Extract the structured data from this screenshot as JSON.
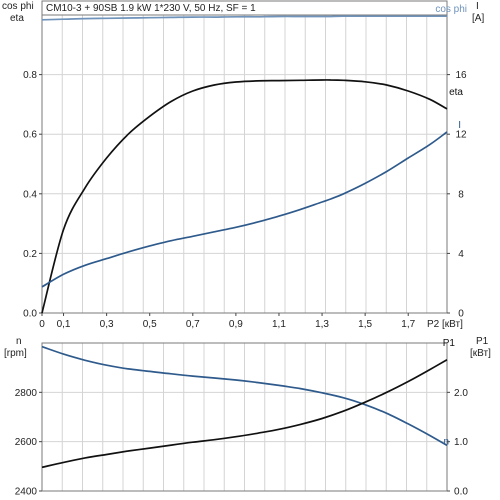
{
  "title": "CM10-3 + 90SB   1.9 kW   1*230 V, 50 Hz, SF = 1",
  "chart_data": [
    {
      "type": "line",
      "x": [
        0,
        0.1,
        0.2,
        0.3,
        0.4,
        0.5,
        0.6,
        0.7,
        0.8,
        0.9,
        1.0,
        1.1,
        1.2,
        1.3,
        1.34,
        1.4,
        1.5,
        1.6,
        1.7,
        1.8,
        1.88
      ],
      "xlim": [
        0,
        1.88
      ],
      "x_ticks": [
        "0",
        "0,1",
        "0,3",
        "0,5",
        "0,7",
        "0,9",
        "1,1",
        "1,3",
        "1,5",
        "1,7"
      ],
      "x_tick_values": [
        0,
        0.1,
        0.3,
        0.5,
        0.7,
        0.9,
        1.1,
        1.3,
        1.5,
        1.7
      ],
      "xlabel": "P2 [кВт]",
      "left_axis": {
        "label_top": "cos phi",
        "label_bottom": "eta",
        "ylim": [
          0,
          1.0
        ],
        "ticks": [
          "0.0",
          "0.2",
          "0.4",
          "0.6",
          "0.8"
        ],
        "tick_values": [
          0,
          0.2,
          0.4,
          0.6,
          0.8
        ]
      },
      "right_axis": {
        "label_top": "I",
        "label_bottom": "[A]",
        "ylim": [
          0,
          20
        ],
        "ticks": [
          "0",
          "4",
          "8",
          "12",
          "16"
        ],
        "tick_values": [
          0,
          4,
          8,
          12,
          16
        ]
      },
      "grid": true,
      "series": [
        {
          "name": "cos phi",
          "axis": "left",
          "color": "#6f93bb",
          "values": [
            0.984,
            0.986,
            0.988,
            0.989,
            0.99,
            0.991,
            0.992,
            0.993,
            0.993,
            0.994,
            0.994,
            0.995,
            0.995,
            0.995,
            0.995,
            0.996,
            0.996,
            0.996,
            0.996,
            0.996,
            0.996
          ]
        },
        {
          "name": "eta",
          "axis": "left",
          "color": "#111111",
          "values": [
            0.0,
            0.28,
            0.42,
            0.52,
            0.6,
            0.66,
            0.71,
            0.745,
            0.765,
            0.775,
            0.779,
            0.78,
            0.781,
            0.782,
            0.782,
            0.781,
            0.776,
            0.765,
            0.745,
            0.717,
            0.685
          ]
        },
        {
          "name": "I",
          "axis": "right",
          "color": "#2e5a8c",
          "values": [
            1.75,
            2.6,
            3.2,
            3.65,
            4.1,
            4.5,
            4.85,
            5.15,
            5.45,
            5.75,
            6.1,
            6.5,
            6.95,
            7.45,
            7.65,
            8.0,
            8.7,
            9.5,
            10.4,
            11.3,
            12.15
          ]
        }
      ]
    },
    {
      "type": "line",
      "x": [
        0,
        0.1,
        0.2,
        0.3,
        0.4,
        0.5,
        0.6,
        0.7,
        0.8,
        0.9,
        1.0,
        1.1,
        1.2,
        1.3,
        1.4,
        1.5,
        1.6,
        1.7,
        1.8,
        1.88
      ],
      "xlim": [
        0,
        1.88
      ],
      "left_axis": {
        "label_top": "n",
        "label_bottom": "[rpm]",
        "ylim": [
          2400,
          3000
        ],
        "ticks": [
          "2400",
          "2600",
          "2800"
        ],
        "tick_values": [
          2400,
          2600,
          2800
        ]
      },
      "right_axis": {
        "label_top": "P1",
        "label_bottom": "[кВт]",
        "ylim": [
          0,
          3.0
        ],
        "ticks": [
          "0.0",
          "1.0",
          "2.0"
        ],
        "tick_values": [
          0,
          1.0,
          2.0
        ]
      },
      "grid": true,
      "series": [
        {
          "name": "n",
          "axis": "left",
          "color": "#2e5a8c",
          "values": [
            2985,
            2955,
            2930,
            2910,
            2895,
            2885,
            2875,
            2866,
            2858,
            2850,
            2840,
            2828,
            2815,
            2798,
            2778,
            2750,
            2715,
            2672,
            2625,
            2585
          ]
        },
        {
          "name": "P1",
          "axis": "right",
          "color": "#111111",
          "values": [
            0.48,
            0.58,
            0.67,
            0.74,
            0.81,
            0.87,
            0.93,
            0.99,
            1.04,
            1.1,
            1.17,
            1.25,
            1.35,
            1.47,
            1.62,
            1.8,
            2.0,
            2.22,
            2.46,
            2.66
          ]
        }
      ]
    }
  ]
}
